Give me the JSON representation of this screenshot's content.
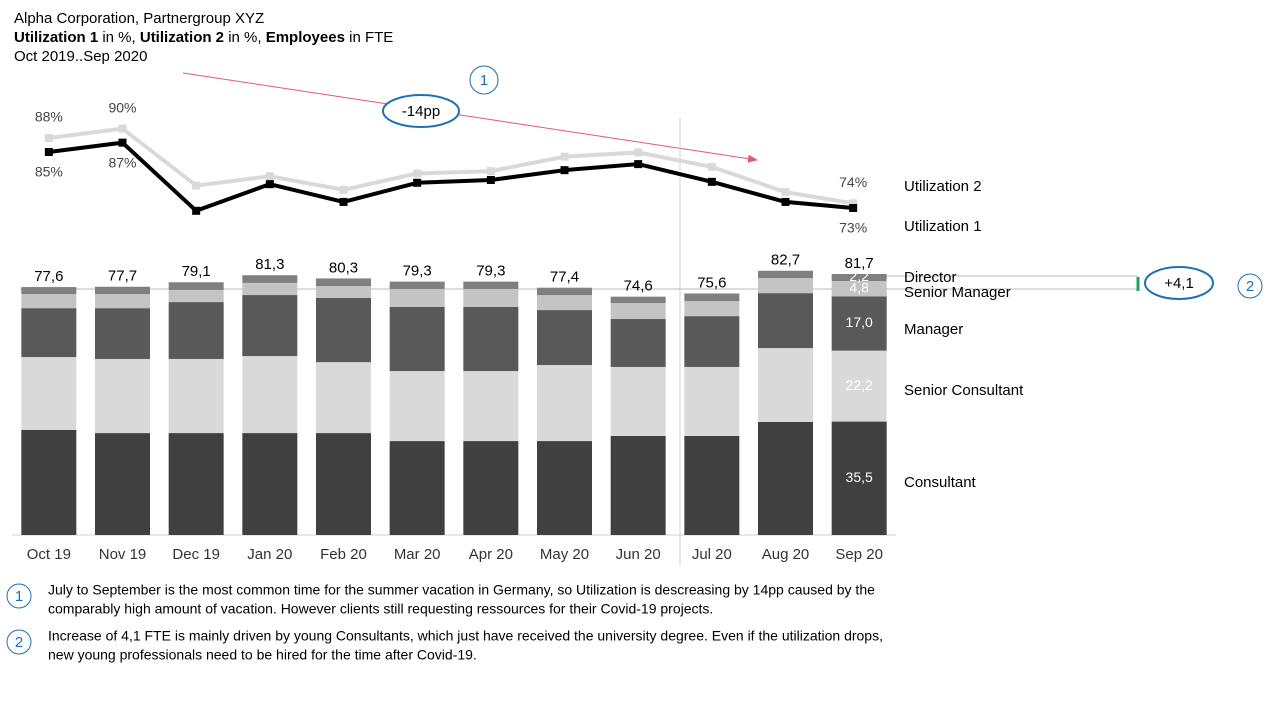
{
  "chart_data": {
    "type": "bar",
    "stacked": true,
    "title": "Alpha Corporation, Partnergroup XYZ",
    "subtitle": [
      {
        "text": "Utilization 1",
        "bold": true
      },
      {
        "text": " in %, ",
        "bold": false
      },
      {
        "text": "Utilization 2",
        "bold": true
      },
      {
        "text": " in %, ",
        "bold": false
      },
      {
        "text": "Employees",
        "bold": true
      },
      {
        "text": " in FTE",
        "bold": false
      }
    ],
    "period": "Oct 2019..Sep 2020",
    "categories": [
      "Oct 19",
      "Nov 19",
      "Dec 19",
      "Jan 20",
      "Feb 20",
      "Mar 20",
      "Apr 20",
      "May 20",
      "Jun 20",
      "Jul 20",
      "Aug 20",
      "Sep 20"
    ],
    "ylim": [
      0,
      90
    ],
    "y2lim": [
      55,
      95
    ],
    "series": [
      {
        "name": "Consultant",
        "color": "#404040",
        "values": [
          32.9,
          31.9,
          31.9,
          31.9,
          31.9,
          29.4,
          29.4,
          29.4,
          31.0,
          31.0,
          35.4,
          35.5
        ],
        "value_labels": [
          null,
          null,
          null,
          null,
          null,
          null,
          null,
          null,
          null,
          null,
          null,
          "35,5"
        ]
      },
      {
        "name": "Senior Consultant",
        "color": "#d9d9d9",
        "values": [
          22.8,
          23.2,
          23.2,
          24.1,
          22.2,
          21.9,
          21.9,
          23.8,
          21.6,
          21.6,
          23.1,
          22.2
        ],
        "value_labels": [
          null,
          null,
          null,
          null,
          null,
          null,
          null,
          null,
          null,
          null,
          null,
          "22,2"
        ]
      },
      {
        "name": "Manager",
        "color": "#595959",
        "values": [
          15.3,
          15.9,
          17.8,
          19.1,
          20.1,
          20.1,
          20.1,
          17.2,
          15.0,
          15.9,
          17.2,
          17.0
        ],
        "value_labels": [
          null,
          null,
          null,
          null,
          null,
          null,
          null,
          null,
          null,
          null,
          null,
          "17,0"
        ]
      },
      {
        "name": "Senior Manager",
        "color": "#c4c4c4",
        "values": [
          4.4,
          4.4,
          3.8,
          3.8,
          3.7,
          5.6,
          5.6,
          4.7,
          5.0,
          4.7,
          4.7,
          4.8
        ],
        "value_labels": [
          null,
          null,
          null,
          null,
          null,
          null,
          null,
          null,
          null,
          null,
          null,
          "4,8"
        ]
      },
      {
        "name": "Director",
        "color": "#7f7f7f",
        "values": [
          2.2,
          2.3,
          2.4,
          2.4,
          2.4,
          2.3,
          2.3,
          2.3,
          2.0,
          2.4,
          2.3,
          2.2
        ],
        "value_labels": [
          null,
          null,
          null,
          null,
          null,
          null,
          null,
          null,
          null,
          null,
          null,
          "2,2"
        ]
      },
      {
        "name": "Utilization 2",
        "type": "line",
        "axis": "y2",
        "color": "#d9d9d9",
        "values": [
          88,
          90,
          77.8,
          79.8,
          76.9,
          80.4,
          80.9,
          84.0,
          84.9,
          81.8,
          76.4,
          74
        ],
        "value_labels": [
          "88%",
          "90%",
          null,
          null,
          null,
          null,
          null,
          null,
          null,
          null,
          null,
          "74%"
        ]
      },
      {
        "name": "Utilization 1",
        "type": "line",
        "axis": "y2",
        "color": "#000000",
        "values": [
          85,
          87,
          72.4,
          78.1,
          74.3,
          78.4,
          79.0,
          81.1,
          82.4,
          78.6,
          74.3,
          73
        ],
        "value_labels": [
          "85%",
          "87%",
          null,
          null,
          null,
          null,
          null,
          null,
          null,
          null,
          null,
          "73%"
        ]
      }
    ],
    "totals": {
      "values": [
        77.6,
        77.7,
        79.1,
        81.3,
        80.3,
        79.3,
        79.3,
        77.4,
        74.6,
        75.6,
        82.7,
        81.7
      ],
      "value_labels": [
        "77,6",
        "77,7",
        "79,1",
        "81,3",
        "80,3",
        "79,3",
        "79,3",
        "77,4",
        "74,6",
        "75,6",
        "82,7",
        "81,7"
      ]
    },
    "annotations": [
      {
        "label": "-14pp",
        "marker": "1"
      },
      {
        "label": "+4,1",
        "marker": "2"
      }
    ],
    "footnotes": [
      {
        "marker": "1",
        "lines": [
          "July to September is the most common time for the summer vacation in Germany, so Utilization is descreasing by 14pp caused by the",
          "comparably high amount of vacation. However clients still requesting ressources for their Covid-19 projects."
        ]
      },
      {
        "marker": "2",
        "lines": [
          "Increase of 4,1 FTE is mainly driven by young Consultants, which just have received the university degree. Even if the utilization drops,",
          "new young professionals need to be hired for the time after Covid-19."
        ]
      }
    ]
  }
}
